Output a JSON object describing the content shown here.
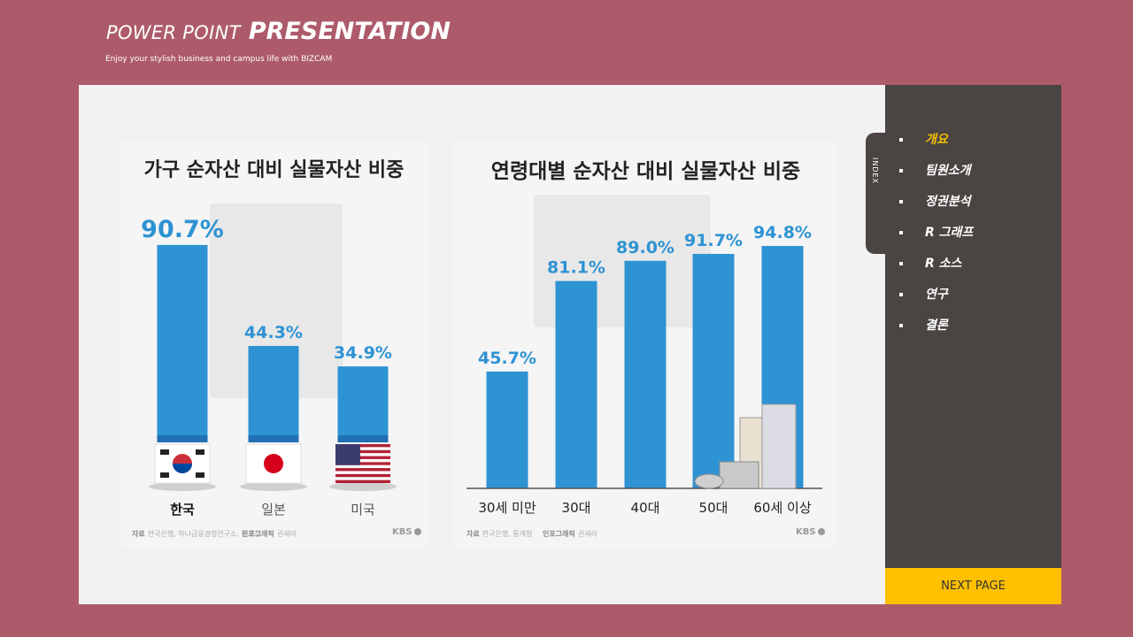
{
  "header": {
    "title_a": "POWER POINT",
    "title_b": "PRESENTATION",
    "subtitle": "Enjoy your stylish  business  and campus life with BIZCAM"
  },
  "sidebar": {
    "index_label": "INDEX",
    "items": [
      {
        "label": "개요",
        "active": true
      },
      {
        "label": "팀원소개"
      },
      {
        "label": "정권분석"
      },
      {
        "label": "R 그래프"
      },
      {
        "label": "R 소스"
      },
      {
        "label": "연구"
      },
      {
        "label": "결론"
      }
    ],
    "next_label": "NEXT  PAGE",
    "accent": "#ffc000"
  },
  "chart_data": [
    {
      "type": "bar",
      "title": "가구 순자산 대비 실물자산 비중",
      "categories": [
        "한국",
        "일본",
        "미국"
      ],
      "values": [
        90.7,
        44.3,
        34.9
      ],
      "value_labels": [
        "90.7%",
        "44.3%",
        "34.9%"
      ],
      "source": "자료",
      "source_text": "한국은행, 하나금융경영연구소, 통계청",
      "credit": "인포그래픽",
      "credit_text": "권세라",
      "brand": "KBS",
      "bar_color": "#2e93d3"
    },
    {
      "type": "bar",
      "title": "연령대별 순자산 대비 실물자산 비중",
      "categories": [
        "30세 미만",
        "30대",
        "40대",
        "50대",
        "60세 이상"
      ],
      "values": [
        45.7,
        81.1,
        89.0,
        91.7,
        94.8
      ],
      "value_labels": [
        "45.7%",
        "81.1%",
        "89.0%",
        "91.7%",
        "94.8%"
      ],
      "source": "자료",
      "source_text": "한국은행, 통계청",
      "credit": "인포그래픽",
      "credit_text": "권세라",
      "brand": "KBS",
      "bar_color": "#2e93d3"
    }
  ]
}
